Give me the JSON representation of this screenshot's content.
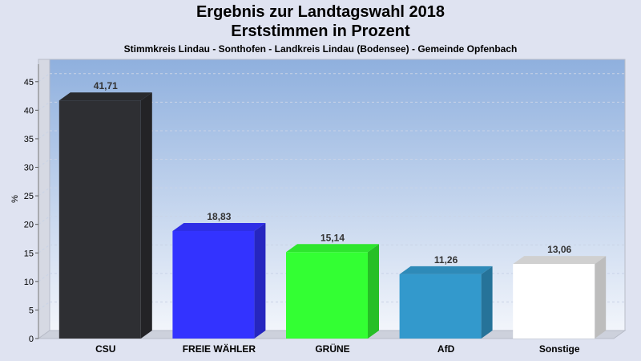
{
  "header": {
    "title": "Ergebnis zur Landtagswahl 2018",
    "subtitle": "Erststimmen in Prozent",
    "region": "Stimmkreis Lindau - Sonthofen - Landkreis Lindau (Bodensee) - Gemeinde Opfenbach"
  },
  "chart_data": {
    "type": "bar",
    "title": "Ergebnis zur Landtagswahl 2018",
    "subtitle": "Erststimmen in Prozent",
    "xlabel": "",
    "ylabel": "%",
    "ylim": [
      0,
      47.5
    ],
    "yticks": [
      0,
      5,
      10,
      15,
      20,
      25,
      30,
      35,
      40,
      45
    ],
    "grid": true,
    "categories": [
      "CSU",
      "FREIE WÄHLER",
      "GRÜNE",
      "AfD",
      "Sonstige"
    ],
    "values": [
      41.71,
      18.83,
      15.14,
      11.26,
      13.06
    ],
    "value_labels": [
      "41,71",
      "18,83",
      "15,14",
      "11,26",
      "13,06"
    ],
    "colors": [
      "#2e2f33",
      "#3333ff",
      "#33ff33",
      "#3399cc",
      "#ffffff"
    ]
  }
}
